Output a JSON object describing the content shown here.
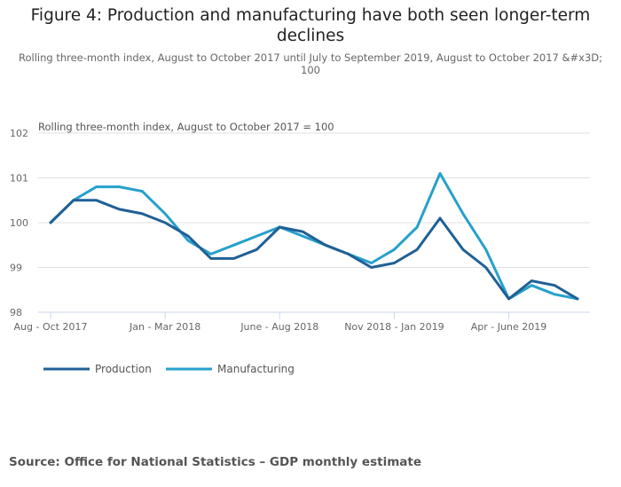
{
  "title": "Figure 4: Production and manufacturing have both seen longer-term declines",
  "subtitle": "Rolling three-month index, August to October 2017 until July to September 2019, August to October 2017 &#x3D; 100",
  "source": "Source: Office for National Statistics – GDP monthly estimate",
  "colors": {
    "production": "#206095",
    "manufacturing": "#27a0cc",
    "grid": "#e0e0e0",
    "axis": "#ccd6eb"
  },
  "chart_data": {
    "type": "line",
    "title": "Figure 4: Production and manufacturing have both seen longer-term declines",
    "ylabel": "Rolling three-month index, August to October 2017 = 100",
    "xlabel": "",
    "ylim": [
      98,
      102
    ],
    "yticks": [
      98,
      99,
      100,
      101,
      102
    ],
    "grid": true,
    "legend": "bottom-left",
    "x": [
      "Aug - Oct 2017",
      "Sep - Nov 2017",
      "Oct - Dec 2017",
      "Nov 2017 - Jan 2018",
      "Dec 2017 - Feb 2018",
      "Jan - Mar 2018",
      "Feb - Apr 2018",
      "Mar - May 2018",
      "Apr - June 2018",
      "May - July 2018",
      "June - Aug 2018",
      "July - Sep 2018",
      "Aug - Oct 2018",
      "Sep - Nov 2018",
      "Oct - Dec 2018",
      "Nov 2018 - Jan 2019",
      "Dec 2018 - Feb 2019",
      "Jan - Mar 2019",
      "Feb - Apr 2019",
      "Mar - May 2019",
      "Apr - June 2019",
      "May - July 2019",
      "June - Aug 2019",
      "July - Sep 2019"
    ],
    "xtick_labels": [
      {
        "index": 0,
        "label": "Aug - Oct 2017"
      },
      {
        "index": 5,
        "label": "Jan - Mar 2018"
      },
      {
        "index": 10,
        "label": "June - Aug 2018"
      },
      {
        "index": 15,
        "label": "Nov 2018 - Jan 2019"
      },
      {
        "index": 20,
        "label": "Apr - June 2019"
      }
    ],
    "series": [
      {
        "name": "Production",
        "values": [
          100.0,
          100.5,
          100.5,
          100.3,
          100.2,
          100.0,
          99.7,
          99.2,
          99.2,
          99.4,
          99.9,
          99.8,
          99.5,
          99.3,
          99.0,
          99.1,
          99.4,
          100.1,
          99.4,
          99.0,
          98.3,
          98.7,
          98.6,
          98.3
        ]
      },
      {
        "name": "Manufacturing",
        "values": [
          100.0,
          100.5,
          100.8,
          100.8,
          100.7,
          100.2,
          99.6,
          99.3,
          99.5,
          99.7,
          99.9,
          99.7,
          99.5,
          99.3,
          99.1,
          99.4,
          99.9,
          101.1,
          100.2,
          99.4,
          98.3,
          98.6,
          98.4,
          98.3
        ]
      }
    ]
  }
}
